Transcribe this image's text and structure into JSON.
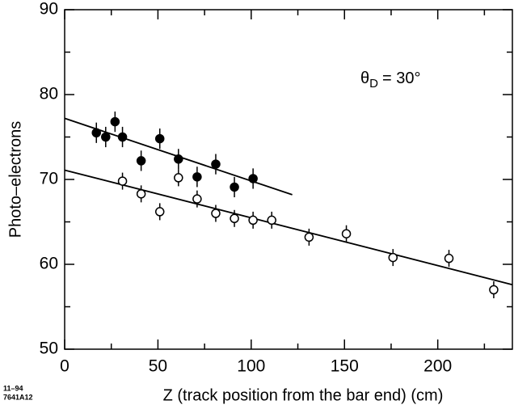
{
  "chart_data": {
    "type": "scatter",
    "x_label": "Z (track position from the bar end)  (cm)",
    "y_label": "Photo–electrons",
    "annotation": {
      "symbol": "θ",
      "subscript": "D",
      "text": "= 30°"
    },
    "footnote": [
      "11–94",
      "7641A12"
    ],
    "xlim": [
      0,
      240
    ],
    "ylim": [
      50,
      90
    ],
    "xticks": [
      0,
      50,
      100,
      150,
      200
    ],
    "yticks": [
      50,
      60,
      70,
      80,
      90
    ],
    "xticks_minor": [
      25,
      75,
      125,
      175,
      225
    ],
    "yticks_minor": [
      55,
      65,
      75,
      85
    ],
    "series": [
      {
        "marker": "filled",
        "color": "#000000",
        "x": [
          17,
          22,
          27,
          31,
          41,
          51,
          61,
          71,
          81,
          91,
          101
        ],
        "values": [
          75.5,
          75,
          76.8,
          75,
          72.2,
          74.8,
          72.4,
          70.3,
          71.8,
          69.1,
          70.1
        ],
        "errors": [
          1.2,
          1.2,
          1.2,
          1.2,
          1.2,
          1.2,
          1.2,
          1.2,
          1.2,
          1.2,
          1.2
        ]
      },
      {
        "marker": "open",
        "color": "#000000",
        "x": [
          31,
          41,
          51,
          61,
          71,
          81,
          91,
          101,
          111,
          131,
          151,
          176,
          206,
          230
        ],
        "values": [
          69.8,
          68.3,
          66.2,
          70.2,
          67.7,
          66,
          65.4,
          65.2,
          65.2,
          63.2,
          63.6,
          60.8,
          60.7,
          57
        ],
        "errors": [
          1,
          1,
          1,
          1,
          1,
          1,
          1,
          1,
          1,
          1,
          1,
          1,
          1,
          1
        ]
      }
    ],
    "fits": [
      {
        "x": [
          0,
          122
        ],
        "values": [
          77.2,
          68.2
        ]
      },
      {
        "x": [
          0,
          240
        ],
        "values": [
          71.1,
          57.6
        ]
      }
    ]
  }
}
